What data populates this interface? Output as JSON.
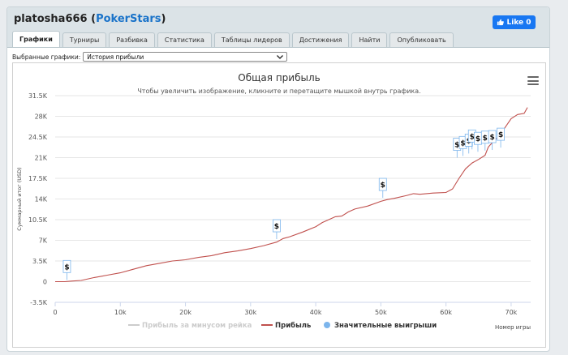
{
  "header": {
    "username": "platosha666",
    "site_open": " (",
    "site": "PokerStars",
    "site_close": ")",
    "like_label": "Like 0"
  },
  "tabs": [
    {
      "label": "Графики",
      "active": true
    },
    {
      "label": "Турниры",
      "active": false
    },
    {
      "label": "Разбивка",
      "active": false
    },
    {
      "label": "Статистика",
      "active": false
    },
    {
      "label": "Таблицы лидеров",
      "active": false
    },
    {
      "label": "Достижения",
      "active": false
    },
    {
      "label": "Найти",
      "active": false
    },
    {
      "label": "Опубликовать",
      "active": false
    }
  ],
  "selector": {
    "label": "Выбранные графики:",
    "value": "История прибыли"
  },
  "chart_data": {
    "type": "line",
    "title": "Общая прибыль",
    "subtitle": "Чтобы увеличить изображение, кликните и перетащите мышкой внутрь графика.",
    "xlabel": "Номер игры",
    "ylabel": "Суммарный итог (USD)",
    "xlim": [
      0,
      73000
    ],
    "ylim": [
      -3500,
      31500
    ],
    "x_ticks": [
      "0",
      "10k",
      "20k",
      "30k",
      "40k",
      "50k",
      "60k",
      "70k"
    ],
    "x_tick_values": [
      0,
      10000,
      20000,
      30000,
      40000,
      50000,
      60000,
      70000
    ],
    "y_ticks": [
      "-3.5K",
      "0",
      "3.5K",
      "7K",
      "10.5K",
      "14K",
      "17.5K",
      "21K",
      "24.5K",
      "28K",
      "31.5K"
    ],
    "y_tick_values": [
      -3500,
      0,
      3500,
      7000,
      10500,
      14000,
      17500,
      21000,
      24500,
      28000,
      31500
    ],
    "legend": [
      "Прибыль за минусом рейка",
      "Прибыль",
      "Значительные выигрыши"
    ],
    "legend_position": "bottom",
    "colors": {
      "profit": "#c0504d",
      "rakeless": "#cccccc",
      "big_wins": "#7cb5ec"
    },
    "series": [
      {
        "name": "Прибыль",
        "x": [
          0,
          1500,
          2500,
          4000,
          6000,
          8000,
          10000,
          12000,
          14000,
          16000,
          18000,
          20000,
          22000,
          24000,
          26000,
          28000,
          30000,
          32000,
          34000,
          35000,
          36000,
          38000,
          40000,
          41000,
          42000,
          43000,
          44000,
          45000,
          46000,
          48000,
          50000,
          51000,
          52000,
          54000,
          55000,
          56000,
          58000,
          60000,
          61000,
          62000,
          63000,
          64000,
          65000,
          66000,
          66500,
          67000,
          68000,
          69000,
          70000,
          71000,
          72000,
          72500
        ],
        "y": [
          0,
          0,
          100,
          200,
          700,
          1100,
          1500,
          2100,
          2700,
          3100,
          3500,
          3700,
          4100,
          4400,
          4900,
          5200,
          5600,
          6100,
          6700,
          7300,
          7600,
          8400,
          9300,
          10000,
          10500,
          11000,
          11100,
          11800,
          12300,
          12800,
          13600,
          13900,
          14100,
          14600,
          14900,
          14800,
          15000,
          15100,
          15700,
          17500,
          19100,
          20100,
          20700,
          21400,
          22800,
          23400,
          24500,
          26000,
          27600,
          28300,
          28500,
          29500
        ]
      }
    ],
    "big_wins": [
      {
        "x": 1800,
        "y": 300
      },
      {
        "x": 34000,
        "y": 7200
      },
      {
        "x": 50300,
        "y": 14200
      },
      {
        "x": 61700,
        "y": 21000
      },
      {
        "x": 62600,
        "y": 21300
      },
      {
        "x": 63500,
        "y": 21700
      },
      {
        "x": 64000,
        "y": 22400
      },
      {
        "x": 64900,
        "y": 22000
      },
      {
        "x": 66000,
        "y": 22200
      },
      {
        "x": 67100,
        "y": 22300
      },
      {
        "x": 68400,
        "y": 22700
      }
    ],
    "big_win_marker": "$"
  }
}
